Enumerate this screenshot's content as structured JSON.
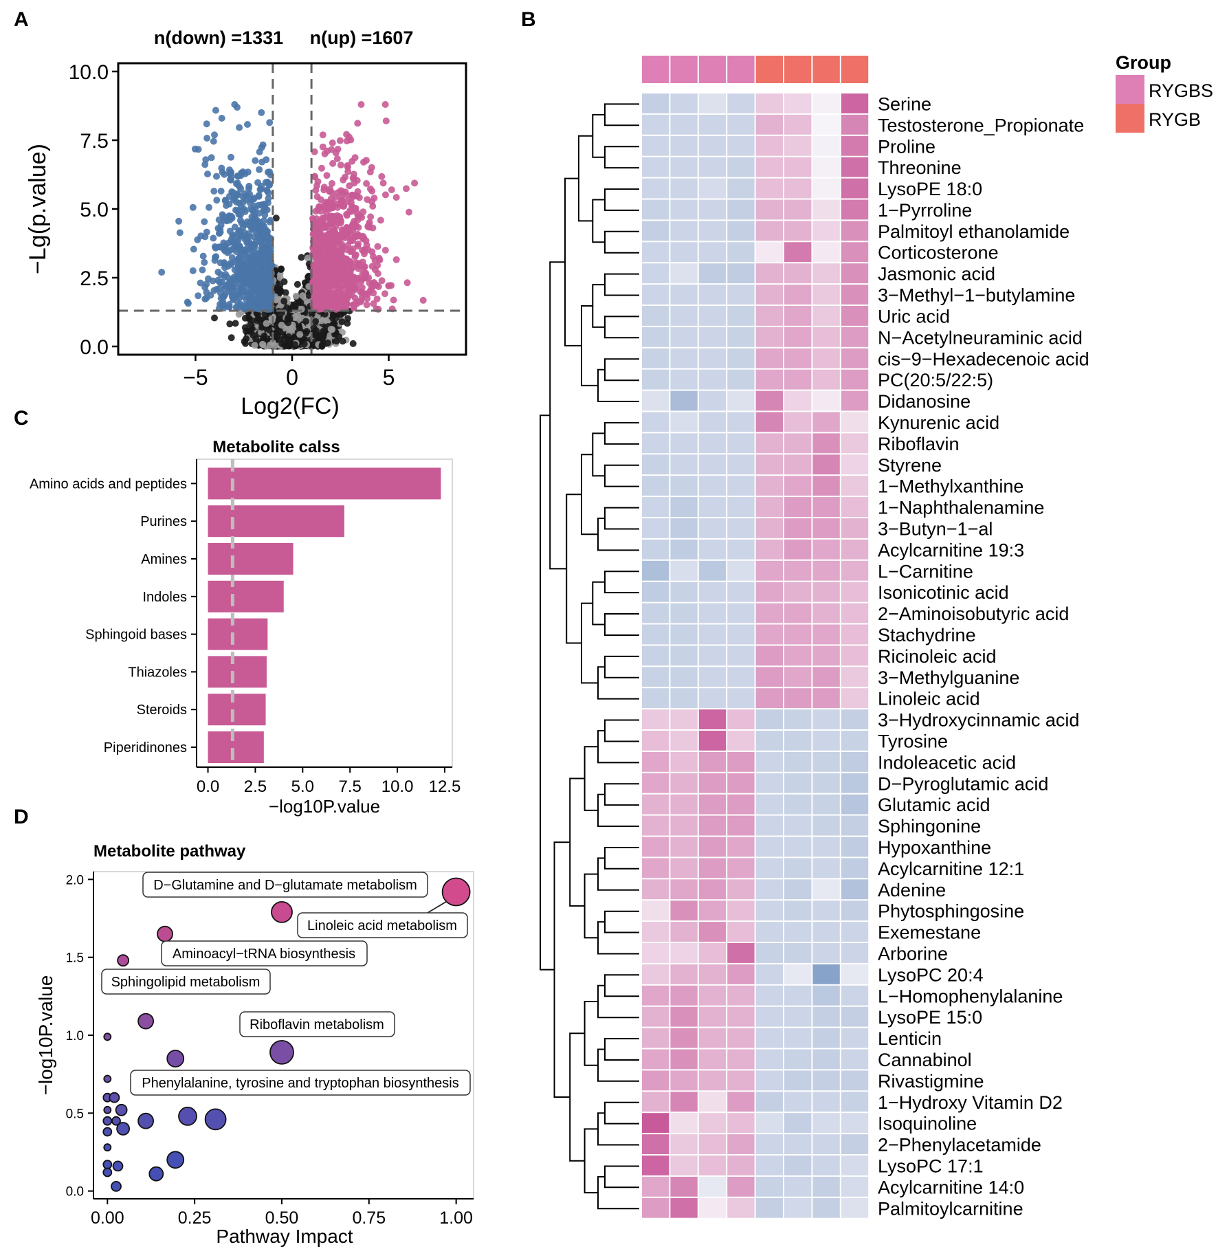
{
  "panels": {
    "a": "A",
    "b": "B",
    "c": "C",
    "d": "D"
  },
  "colors": {
    "down": "#4a75a8",
    "up": "#c85a95",
    "ns": "#6f6f6f",
    "bar": "#c85a95",
    "RYGBS": "#de7fb6",
    "RYGB": "#ee7066",
    "heat_low": "#7f9dc6",
    "heat_mid": "#f7f4f9",
    "heat_high": "#c95a9a"
  },
  "volcano": {
    "n_down_label": "n(down) =1331",
    "n_up_label": "n(up) =1607",
    "xlabel": "Log2(FC)",
    "ylabel": "−Lg(p.value)",
    "x_ticks": [
      "−5",
      "0",
      "5"
    ],
    "x_tick_values": [
      -5,
      0,
      5
    ],
    "y_ticks": [
      "0.0",
      "2.5",
      "5.0",
      "7.5",
      "10.0"
    ],
    "y_tick_values": [
      0,
      2.5,
      5,
      7.5,
      10
    ],
    "xlim": [
      -9,
      9
    ],
    "ylim": [
      -0.3,
      10.3
    ],
    "fc_threshold": 1,
    "p_threshold": 1.3,
    "n_down": 1331,
    "n_up": 1607
  },
  "chart_data": [
    {
      "type": "bar",
      "title": "Metabolite calss",
      "xlabel": "−log10P.value",
      "ylabel": "",
      "categories": [
        "Amino acids and peptides",
        "Purines",
        "Amines",
        "Indoles",
        "Sphingoid bases",
        "Thiazoles",
        "Steroids",
        "Piperidinones"
      ],
      "values": [
        12.3,
        7.2,
        4.5,
        4.0,
        3.15,
        3.1,
        3.05,
        2.95
      ],
      "x_ticks": [
        "0.0",
        "2.5",
        "5.0",
        "7.5",
        "10.0",
        "12.5"
      ],
      "x_tick_values": [
        0,
        2.5,
        5,
        7.5,
        10,
        12.5
      ],
      "xlim": [
        -0.6,
        12.9
      ],
      "threshold": 1.3
    },
    {
      "type": "scatter",
      "title": "Metabolite pathway",
      "xlabel": "Pathway Impact",
      "ylabel": "−log10P.value",
      "x_ticks": [
        "0.00",
        "0.25",
        "0.50",
        "0.75",
        "1.00"
      ],
      "x_tick_values": [
        0,
        0.25,
        0.5,
        0.75,
        1
      ],
      "y_ticks": [
        "0.0",
        "0.5",
        "1.0",
        "1.5",
        "2.0"
      ],
      "y_tick_values": [
        0,
        0.5,
        1,
        1.5,
        2
      ],
      "xlim": [
        -0.04,
        1.05
      ],
      "ylim": [
        -0.05,
        2.05
      ],
      "points": [
        {
          "x": 1.0,
          "y": 1.92,
          "s": 20
        },
        {
          "x": 0.5,
          "y": 1.79,
          "s": 15
        },
        {
          "x": 0.165,
          "y": 1.65,
          "s": 11
        },
        {
          "x": 0.045,
          "y": 1.48,
          "s": 8
        },
        {
          "x": 0.11,
          "y": 1.09,
          "s": 11
        },
        {
          "x": 0.0,
          "y": 0.99,
          "s": 5
        },
        {
          "x": 0.5,
          "y": 0.89,
          "s": 17
        },
        {
          "x": 0.195,
          "y": 0.85,
          "s": 12
        },
        {
          "x": 0.0,
          "y": 0.72,
          "s": 5
        },
        {
          "x": 0.0,
          "y": 0.6,
          "s": 6
        },
        {
          "x": 0.02,
          "y": 0.6,
          "s": 7
        },
        {
          "x": 0.0,
          "y": 0.52,
          "s": 5
        },
        {
          "x": 0.04,
          "y": 0.52,
          "s": 8
        },
        {
          "x": 0.0,
          "y": 0.45,
          "s": 6
        },
        {
          "x": 0.025,
          "y": 0.45,
          "s": 6
        },
        {
          "x": 0.0,
          "y": 0.38,
          "s": 6
        },
        {
          "x": 0.045,
          "y": 0.4,
          "s": 9
        },
        {
          "x": 0.11,
          "y": 0.45,
          "s": 11
        },
        {
          "x": 0.23,
          "y": 0.48,
          "s": 13
        },
        {
          "x": 0.31,
          "y": 0.46,
          "s": 15
        },
        {
          "x": 0.0,
          "y": 0.28,
          "s": 5
        },
        {
          "x": 0.0,
          "y": 0.17,
          "s": 6
        },
        {
          "x": 0.03,
          "y": 0.16,
          "s": 7
        },
        {
          "x": 0.0,
          "y": 0.12,
          "s": 6
        },
        {
          "x": 0.195,
          "y": 0.2,
          "s": 12
        },
        {
          "x": 0.14,
          "y": 0.11,
          "s": 10
        },
        {
          "x": 0.025,
          "y": 0.03,
          "s": 7
        }
      ],
      "annotations": [
        "D−Glutamine and D−glutamate metabolism",
        "Linoleic acid metabolism",
        "Aminoacyl−tRNA biosynthesis",
        "Sphingolipid metabolism",
        "Riboflavin metabolism",
        "Phenylalanine, tyrosine and tryptophan biosynthesis"
      ]
    },
    {
      "type": "heatmap",
      "legend_title": "Group",
      "groups": [
        "RYGBS",
        "RYGBS",
        "RYGBS",
        "RYGBS",
        "RYGB",
        "RYGB",
        "RYGB",
        "RYGB"
      ],
      "legend": [
        "RYGBS",
        "RYGB"
      ],
      "rows": [
        "Serine",
        "Testosterone_Propionate",
        "Proline",
        "Threonine",
        "LysoPE 18:0",
        "1−Pyrroline",
        "Palmitoyl ethanolamide",
        "Corticosterone",
        "Jasmonic acid",
        "3−Methyl−1−butylamine",
        "Uric acid",
        "N−Acetylneuraminic acid",
        "cis−9−Hexadecenoic acid",
        "PC(20:5/22:5)",
        "Didanosine",
        "Kynurenic acid",
        "Riboflavin",
        "Styrene",
        "1−Methylxanthine",
        "1−Naphthalenamine",
        "3−Butyn−1−al",
        "Acylcarnitine 19:3",
        "L−Carnitine",
        "Isonicotinic acid",
        "2−Aminoisobutyric acid",
        "Stachydrine",
        "Ricinoleic acid",
        "3−Methylguanine",
        "Linoleic acid",
        "3−Hydroxycinnamic acid",
        "Tyrosine",
        "Indoleacetic acid",
        "D−Pyroglutamic acid",
        "Glutamic acid",
        "Sphingonine",
        "Hypoxanthine",
        "Acylcarnitine 12:1",
        "Adenine",
        "Phytosphingosine",
        "Exemestane",
        "Arborine",
        "LysoPC 20:4",
        "L−Homophenylalanine",
        "LysoPE 15:0",
        "Lenticin",
        "Cannabinol",
        "Rivastigmine",
        "1−Hydroxy Vitamin D2",
        "Isoquinoline",
        "2−Phenylacetamide",
        "LysoPC 17:1",
        "Acylcarnitine 14:0",
        "Palmitoylcarnitine"
      ],
      "values": [
        [
          -0.6,
          -0.5,
          -0.3,
          -0.5,
          0.4,
          0.3,
          0.05,
          1.3
        ],
        [
          -0.5,
          -0.5,
          -0.5,
          -0.5,
          0.6,
          0.5,
          0.0,
          1.0
        ],
        [
          -0.5,
          -0.5,
          -0.5,
          -0.5,
          0.5,
          0.4,
          -0.05,
          1.1
        ],
        [
          -0.5,
          -0.5,
          -0.5,
          -0.55,
          0.5,
          0.5,
          0.05,
          1.2
        ],
        [
          -0.5,
          -0.5,
          -0.4,
          -0.55,
          0.5,
          0.5,
          0.05,
          1.2
        ],
        [
          -0.55,
          -0.5,
          -0.5,
          -0.6,
          0.6,
          0.6,
          0.2,
          1.1
        ],
        [
          -0.6,
          -0.5,
          -0.5,
          -0.6,
          0.6,
          0.6,
          0.3,
          0.9
        ],
        [
          -0.5,
          -0.5,
          -0.5,
          -0.55,
          0.1,
          1.1,
          0.1,
          0.9
        ],
        [
          -0.5,
          -0.3,
          -0.65,
          -0.65,
          0.6,
          0.6,
          0.4,
          0.9
        ],
        [
          -0.5,
          -0.5,
          -0.5,
          -0.5,
          0.6,
          0.7,
          0.4,
          0.9
        ],
        [
          -0.55,
          -0.5,
          -0.5,
          -0.55,
          0.6,
          0.7,
          0.4,
          0.9
        ],
        [
          -0.55,
          -0.5,
          -0.5,
          -0.55,
          0.6,
          0.7,
          0.5,
          0.8
        ],
        [
          -0.55,
          -0.5,
          -0.5,
          -0.55,
          0.7,
          0.7,
          0.5,
          0.8
        ],
        [
          -0.55,
          -0.5,
          -0.5,
          -0.55,
          0.7,
          0.7,
          0.5,
          0.8
        ],
        [
          -0.3,
          -0.9,
          -0.5,
          -0.3,
          1.0,
          0.3,
          0.1,
          0.8
        ],
        [
          -0.5,
          -0.35,
          -0.5,
          -0.5,
          1.0,
          0.5,
          0.7,
          0.2
        ],
        [
          -0.5,
          -0.5,
          -0.5,
          -0.5,
          0.6,
          0.6,
          0.9,
          0.4
        ],
        [
          -0.55,
          -0.5,
          -0.5,
          -0.5,
          0.6,
          0.6,
          1.0,
          0.3
        ],
        [
          -0.55,
          -0.55,
          -0.5,
          -0.5,
          0.6,
          0.7,
          0.9,
          0.4
        ],
        [
          -0.5,
          -0.65,
          -0.5,
          -0.5,
          0.6,
          0.8,
          0.8,
          0.5
        ],
        [
          -0.5,
          -0.65,
          -0.5,
          -0.5,
          0.6,
          0.8,
          0.8,
          0.6
        ],
        [
          -0.55,
          -0.65,
          -0.5,
          -0.5,
          0.6,
          0.8,
          0.7,
          0.6
        ],
        [
          -0.85,
          -0.35,
          -0.7,
          -0.35,
          0.7,
          0.7,
          0.7,
          0.6
        ],
        [
          -0.65,
          -0.55,
          -0.5,
          -0.5,
          0.7,
          0.6,
          0.6,
          0.5
        ],
        [
          -0.55,
          -0.55,
          -0.5,
          -0.5,
          0.7,
          0.7,
          0.6,
          0.5
        ],
        [
          -0.55,
          -0.55,
          -0.5,
          -0.5,
          0.7,
          0.7,
          0.7,
          0.5
        ],
        [
          -0.55,
          -0.55,
          -0.5,
          -0.5,
          0.8,
          0.7,
          0.7,
          0.5
        ],
        [
          -0.55,
          -0.55,
          -0.5,
          -0.5,
          0.8,
          0.7,
          0.8,
          0.4
        ],
        [
          -0.55,
          -0.55,
          -0.5,
          -0.5,
          0.8,
          0.8,
          0.8,
          0.4
        ],
        [
          0.4,
          0.4,
          1.3,
          0.5,
          -0.6,
          -0.55,
          -0.5,
          -0.6
        ],
        [
          0.5,
          0.4,
          1.3,
          0.4,
          -0.55,
          -0.55,
          -0.5,
          -0.55
        ],
        [
          0.7,
          0.5,
          0.8,
          0.8,
          -0.5,
          -0.55,
          -0.55,
          -0.65
        ],
        [
          0.7,
          0.6,
          0.8,
          0.8,
          -0.5,
          -0.55,
          -0.55,
          -0.7
        ],
        [
          0.6,
          0.6,
          0.8,
          0.8,
          -0.5,
          -0.55,
          -0.55,
          -0.75
        ],
        [
          0.6,
          0.6,
          0.8,
          0.8,
          -0.5,
          -0.5,
          -0.55,
          -0.6
        ],
        [
          0.7,
          0.6,
          0.8,
          0.7,
          -0.5,
          -0.5,
          -0.5,
          -0.65
        ],
        [
          0.7,
          0.6,
          0.8,
          0.7,
          -0.5,
          -0.55,
          -0.5,
          -0.65
        ],
        [
          0.6,
          0.7,
          0.8,
          0.6,
          -0.5,
          -0.6,
          -0.2,
          -0.8
        ],
        [
          0.2,
          0.9,
          0.7,
          0.5,
          -0.5,
          -0.55,
          -0.5,
          -0.6
        ],
        [
          0.4,
          0.6,
          0.9,
          0.5,
          -0.5,
          -0.5,
          -0.5,
          -0.5
        ],
        [
          0.3,
          0.3,
          0.5,
          1.2,
          -0.55,
          -0.55,
          -0.5,
          -0.5
        ],
        [
          0.4,
          0.6,
          0.6,
          0.8,
          -0.5,
          -0.2,
          -1.3,
          -0.2
        ],
        [
          0.7,
          0.8,
          0.6,
          0.6,
          -0.5,
          -0.5,
          -0.7,
          -0.5
        ],
        [
          0.6,
          0.9,
          0.6,
          0.6,
          -0.5,
          -0.5,
          -0.6,
          -0.6
        ],
        [
          0.6,
          0.9,
          0.6,
          0.6,
          -0.5,
          -0.5,
          -0.6,
          -0.5
        ],
        [
          0.7,
          0.9,
          0.6,
          0.6,
          -0.5,
          -0.55,
          -0.6,
          -0.5
        ],
        [
          0.8,
          0.7,
          0.6,
          0.6,
          -0.5,
          -0.6,
          -0.6,
          -0.6
        ],
        [
          0.6,
          1.0,
          0.2,
          0.8,
          -0.6,
          -0.5,
          -0.5,
          -0.55
        ],
        [
          1.4,
          0.2,
          0.4,
          0.5,
          -0.35,
          -0.6,
          -0.4,
          -0.4
        ],
        [
          1.2,
          0.4,
          0.5,
          0.7,
          -0.5,
          -0.5,
          -0.5,
          -0.6
        ],
        [
          1.3,
          0.4,
          0.5,
          0.6,
          -0.5,
          -0.6,
          -0.5,
          -0.4
        ],
        [
          0.7,
          1.0,
          -0.2,
          0.8,
          -0.55,
          -0.5,
          -0.6,
          -0.4
        ],
        [
          0.8,
          1.2,
          0.1,
          0.4,
          -0.6,
          -0.45,
          -0.6,
          -0.3
        ]
      ]
    }
  ]
}
